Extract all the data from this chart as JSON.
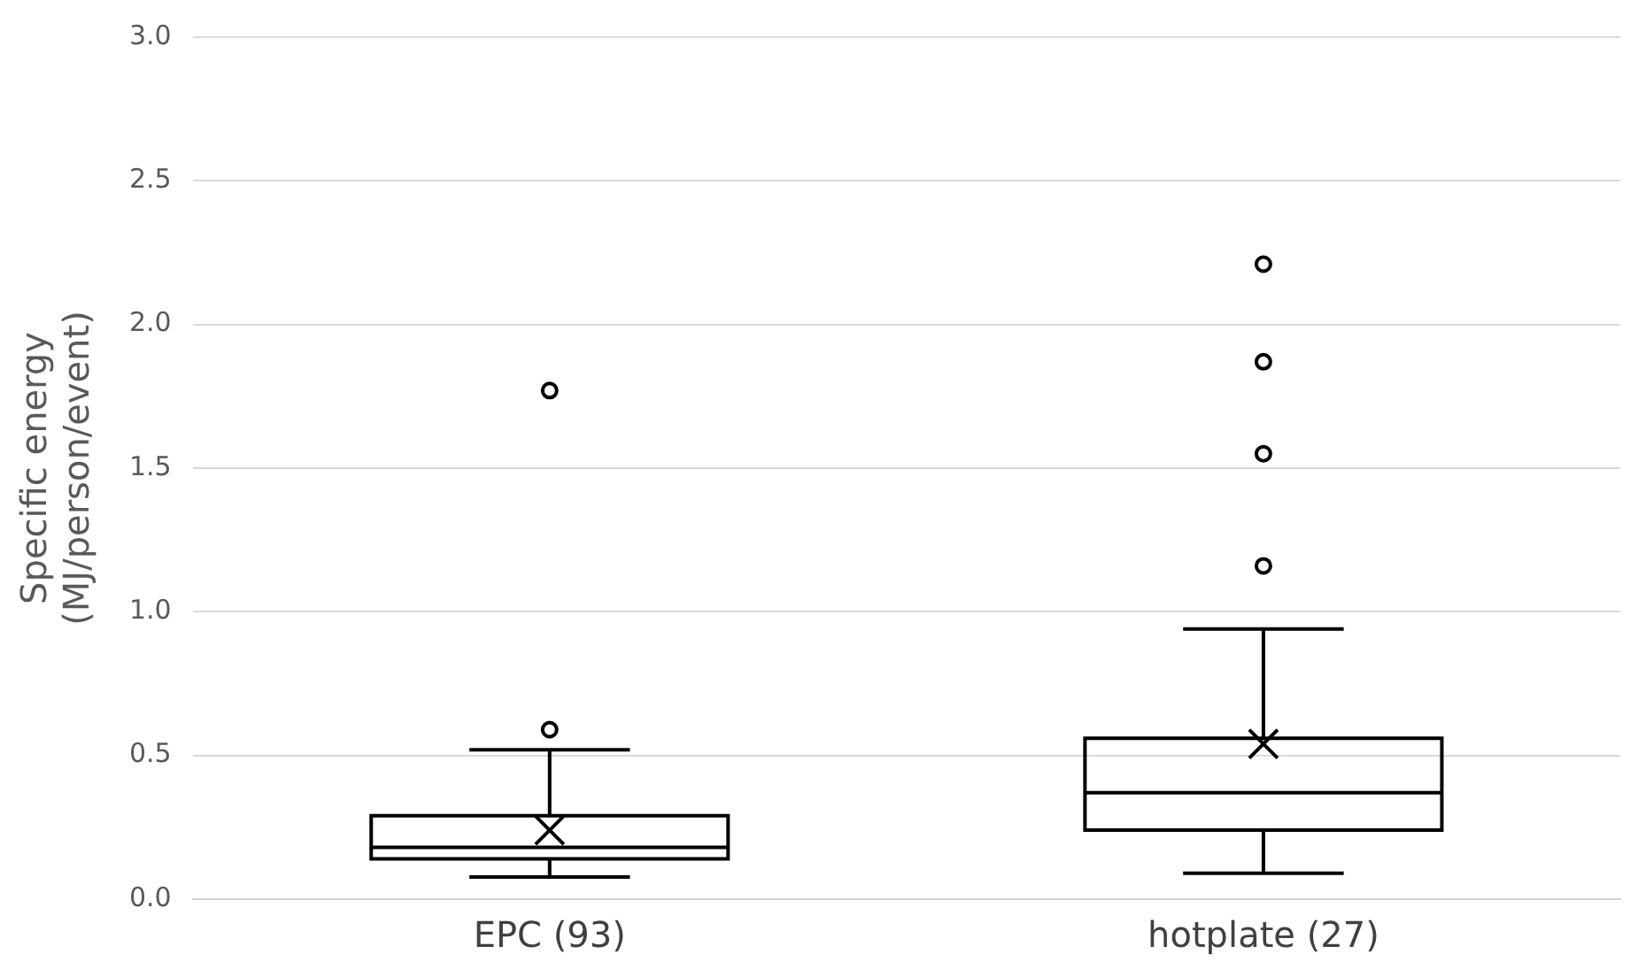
{
  "chart_data": {
    "type": "box",
    "ylabel": "Specific energy\n(MJ/person/event)",
    "categories": [
      "EPC (93)",
      "hotplate (27)"
    ],
    "boxes": [
      {
        "low": 0.077,
        "q1": 0.14,
        "median": 0.18,
        "q3": 0.29,
        "high": 0.52,
        "mean": 0.24,
        "outliers": [
          0.59,
          1.77
        ]
      },
      {
        "low": 0.09,
        "q1": 0.24,
        "median": 0.37,
        "q3": 0.56,
        "high": 0.94,
        "mean": 0.54,
        "outliers": [
          1.16,
          1.55,
          1.87,
          2.21
        ]
      }
    ],
    "color": "#000000",
    "ylim": [
      0,
      3
    ],
    "yticks": [
      {
        "value": 0,
        "label": "0.0"
      },
      {
        "value": 0.5,
        "label": "0.5"
      },
      {
        "value": 1,
        "label": "1.0"
      },
      {
        "value": 1.5,
        "label": "1.5"
      },
      {
        "value": 2,
        "label": "2.0"
      },
      {
        "value": 2.5,
        "label": "2.5"
      },
      {
        "value": 3,
        "label": "3.0"
      }
    ],
    "grid": "y"
  }
}
